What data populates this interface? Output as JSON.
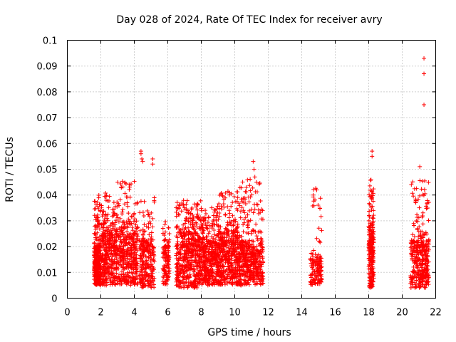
{
  "chart_data": {
    "type": "scatter",
    "title": "Day 028 of 2024, Rate Of TEC Index for receiver avry",
    "xlabel": "GPS time / hours",
    "ylabel": "ROTI / TECUs",
    "xlim": [
      0,
      22
    ],
    "ylim": [
      0,
      0.1
    ],
    "x_ticks": [
      "0",
      "2",
      "4",
      "6",
      "8",
      "10",
      "12",
      "14",
      "16",
      "18",
      "20",
      "22"
    ],
    "y_ticks": [
      "0",
      "0.01",
      "0.02",
      "0.03",
      "0.04",
      "0.05",
      "0.06",
      "0.07",
      "0.08",
      "0.09",
      "0.1"
    ],
    "grid": true,
    "marker": "+",
    "colors": {
      "series": "#ff0000",
      "axis": "#000000",
      "grid": "#a0a0a0"
    },
    "series": [
      {
        "name": "ROTI",
        "clusters": [
          {
            "x": [
              1.6,
              2.0
            ],
            "y_base": [
              0.005,
              0.02
            ],
            "y_max": 0.04,
            "density": 320
          },
          {
            "x": [
              2.0,
              3.0
            ],
            "y_base": [
              0.005,
              0.025
            ],
            "y_max": 0.041,
            "density": 380
          },
          {
            "x": [
              3.0,
              4.2
            ],
            "y_base": [
              0.005,
              0.025
            ],
            "y_max": 0.046,
            "density": 400
          },
          {
            "x": [
              4.3,
              5.2
            ],
            "y_base": [
              0.004,
              0.022
            ],
            "y_max": 0.039,
            "density": 260
          },
          {
            "x": [
              5.7,
              6.1
            ],
            "y_base": [
              0.005,
              0.02
            ],
            "y_max": 0.031,
            "density": 120
          },
          {
            "x": [
              6.5,
              8.0
            ],
            "y_base": [
              0.004,
              0.025
            ],
            "y_max": 0.038,
            "density": 520
          },
          {
            "x": [
              8.0,
              9.0
            ],
            "y_base": [
              0.005,
              0.022
            ],
            "y_max": 0.036,
            "density": 380
          },
          {
            "x": [
              9.0,
              10.2
            ],
            "y_base": [
              0.005,
              0.025
            ],
            "y_max": 0.042,
            "density": 440
          },
          {
            "x": [
              10.2,
              11.7
            ],
            "y_base": [
              0.005,
              0.022
            ],
            "y_max": 0.047,
            "density": 480
          },
          {
            "x": [
              14.5,
              15.2
            ],
            "y_base": [
              0.005,
              0.015
            ],
            "y_max": 0.044,
            "density": 150
          },
          {
            "x": [
              18.0,
              18.3
            ],
            "y_base": [
              0.004,
              0.028
            ],
            "y_max": 0.047,
            "density": 240
          },
          {
            "x": [
              20.5,
              21.6
            ],
            "y_base": [
              0.004,
              0.022
            ],
            "y_max": 0.046,
            "density": 380
          }
        ],
        "outliers": [
          {
            "x": 4.4,
            "y": 0.057
          },
          {
            "x": 4.4,
            "y": 0.056
          },
          {
            "x": 4.45,
            "y": 0.054
          },
          {
            "x": 4.5,
            "y": 0.053
          },
          {
            "x": 5.1,
            "y": 0.054
          },
          {
            "x": 5.1,
            "y": 0.052
          },
          {
            "x": 11.1,
            "y": 0.053
          },
          {
            "x": 11.15,
            "y": 0.05
          },
          {
            "x": 11.2,
            "y": 0.047
          },
          {
            "x": 18.2,
            "y": 0.057
          },
          {
            "x": 18.2,
            "y": 0.055
          },
          {
            "x": 21.05,
            "y": 0.051
          },
          {
            "x": 21.3,
            "y": 0.093
          },
          {
            "x": 21.3,
            "y": 0.087
          },
          {
            "x": 21.3,
            "y": 0.075
          }
        ]
      }
    ]
  }
}
